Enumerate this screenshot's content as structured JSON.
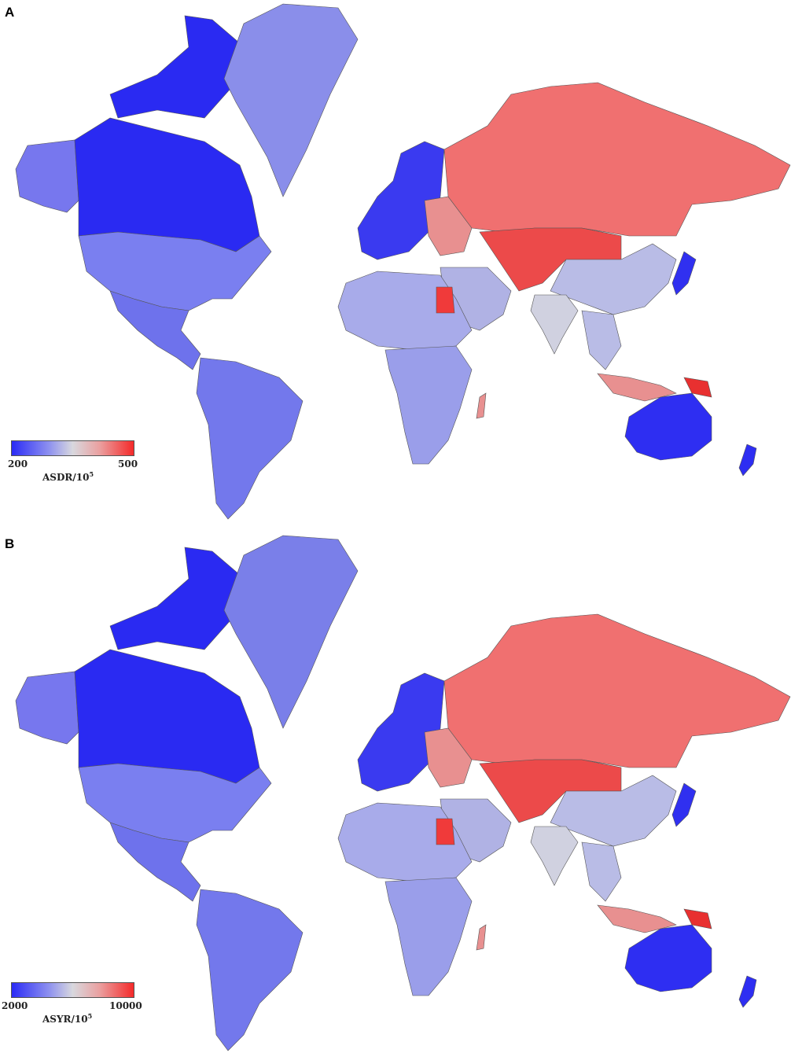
{
  "panels": [
    {
      "letter": "A",
      "legend": {
        "min_label": "200",
        "max_label": "500",
        "title": "ASDR/10",
        "title_exp": "5",
        "low_color": "#2b2bf5",
        "mid_color": "#d8d8de",
        "high_color": "#f42a2a"
      }
    },
    {
      "letter": "B",
      "legend": {
        "min_label": "2000",
        "max_label": "10000",
        "title": "ASYR/10",
        "title_exp": "5",
        "low_color": "#2b2bf5",
        "mid_color": "#d8d8de",
        "high_color": "#f42a2a"
      }
    }
  ],
  "region_colors": {
    "canada": "#2a2af2",
    "alaska": "#7777ee",
    "usa": "#7a7ff0",
    "greenland_a": "#8a8eea",
    "greenland_b": "#7a7fe9",
    "mexico_central": "#6e72ec",
    "south_america": "#7378ec",
    "russia": "#f07070",
    "china": "#b9bce6",
    "central_asia": "#ec4a4a",
    "europe_west": "#3a3af0",
    "europe_east": "#e89090",
    "africa_north": "#a8abea",
    "africa_south": "#9a9eea",
    "middle_east": "#b0b2e4",
    "india": "#d0d1e0",
    "australia": "#2e2ef2",
    "egypt": "#f03a3a",
    "png": "#e83030",
    "japan": "#3030f0"
  }
}
